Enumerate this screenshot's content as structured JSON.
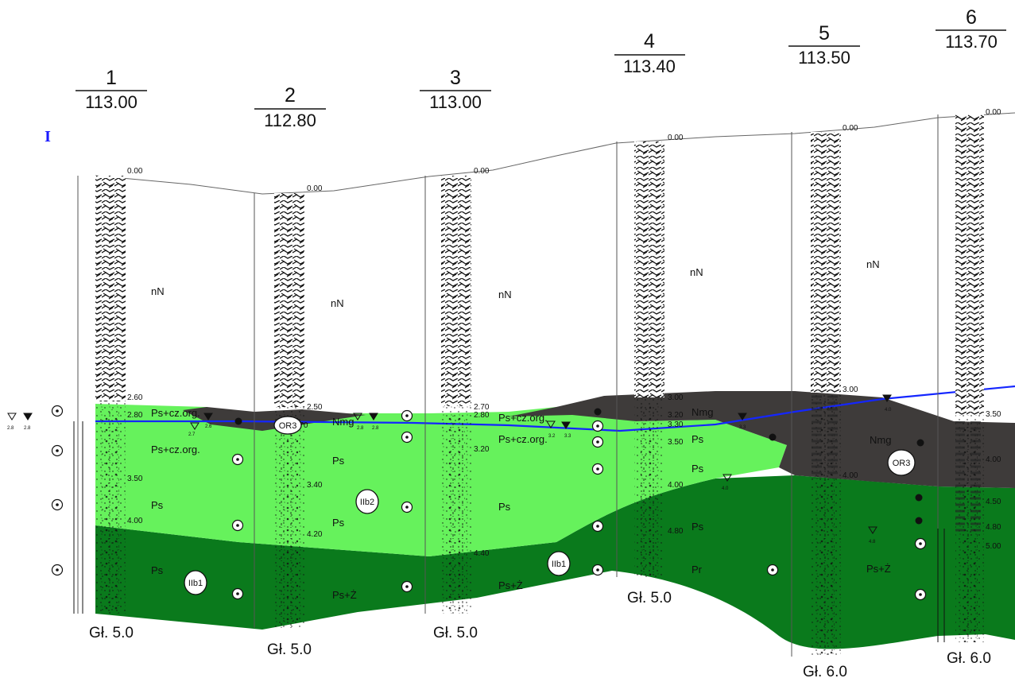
{
  "section_label": "I",
  "colors": {
    "nasyp": "#ffffff",
    "light_green": "#66f25c",
    "dark_green": "#0a7a1c",
    "dark_grey": "#3e3b3a",
    "water_line": "#1426ff",
    "roman_numeral": "#1a1aff"
  },
  "boreholes": [
    {
      "number": "1",
      "elevation": "113.00",
      "depth_label": "Gł. 5.0"
    },
    {
      "number": "2",
      "elevation": "112.80",
      "depth_label": "Gł. 5.0"
    },
    {
      "number": "3",
      "elevation": "113.00",
      "depth_label": "Gł. 5.0"
    },
    {
      "number": "4",
      "elevation": "113.40",
      "depth_label": "Gł. 5.0"
    },
    {
      "number": "5",
      "elevation": "113.50",
      "depth_label": "Gł. 6.0"
    },
    {
      "number": "6",
      "elevation": "113.70",
      "depth_label": "Gł. 6.0"
    }
  ],
  "depths": [
    "0.00",
    "0.00",
    "0.00",
    "0.00",
    "0.00",
    "0.00",
    "2.60",
    "2.80",
    "3.50",
    "4.00",
    "2.50",
    "2.70",
    "3.40",
    "4.20",
    "2.70",
    "2.80",
    "3.20",
    "4.40",
    "3.00",
    "3.20",
    "3.30",
    "3.50",
    "4.00",
    "4.80",
    "3.00",
    "4.00",
    "3.50",
    "4.00",
    "4.50",
    "4.80",
    "5.00"
  ],
  "water_levels": [
    "2.8",
    "2.8",
    "2.7",
    "2.6",
    "2.8",
    "2.8",
    "3.2",
    "3.3",
    "3.3",
    "4.0",
    "4.0",
    "4.8"
  ],
  "soil_labels": [
    "nN",
    "nN",
    "nN",
    "nN",
    "nN",
    "Ps+cz.org.",
    "Ps+cz.org.",
    "Ps",
    "Ps",
    "Nmg",
    "Ps",
    "Ps",
    "Ps+Ż",
    "Ps+cz.org.",
    "Ps+cz.org.",
    "Ps",
    "Ps+Ż",
    "Nmg",
    "Ps",
    "Ps",
    "Ps",
    "Pr",
    "Nmg",
    "Ps+Ż"
  ],
  "geo_layers": [
    "OR3",
    "IIb2",
    "IIb1",
    "IIb1",
    "OR3"
  ]
}
